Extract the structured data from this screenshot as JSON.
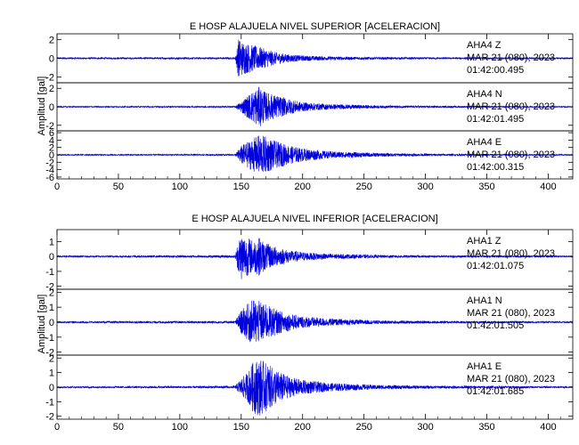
{
  "chart_data": [
    {
      "type": "line",
      "title": "E HOSP ALAJUELA NIVEL SUPERIOR [ACELERACION]",
      "ylabel": "Amplitud [gal]",
      "xlim": [
        0,
        420
      ],
      "x_ticks": [
        "0",
        "50",
        "100",
        "150",
        "200",
        "250",
        "300",
        "350",
        "400"
      ],
      "grid": false,
      "panels": [
        {
          "channel": "AHA4   Z",
          "date": "MAR 21 (080), 2023",
          "time": "01:42:00.495",
          "y_ticks": [
            "2",
            "0",
            "-2"
          ],
          "ylim": [
            -2.6,
            2.6
          ],
          "series": [
            {
              "x": [
                0,
                145,
                148,
                150,
                155,
                160,
                170,
                180,
                190,
                200,
                220,
                260,
                300,
                420
              ],
              "y": [
                0.08,
                0.1,
                2.2,
                1.9,
                1.6,
                1.4,
                1.0,
                0.6,
                0.4,
                0.3,
                0.2,
                0.12,
                0.1,
                0.08
              ]
            }
          ]
        },
        {
          "channel": "AHA4   N",
          "date": "MAR 21 (080), 2023",
          "time": "01:42:01.495",
          "y_ticks": [
            "2",
            "0",
            "-2"
          ],
          "ylim": [
            -2.6,
            2.6
          ],
          "series": [
            {
              "x": [
                0,
                145,
                150,
                155,
                160,
                165,
                170,
                180,
                190,
                200,
                220,
                260,
                300,
                420
              ],
              "y": [
                0.06,
                0.08,
                0.6,
                1.2,
                1.8,
                2.2,
                1.6,
                1.2,
                0.8,
                0.5,
                0.3,
                0.15,
                0.1,
                0.06
              ]
            }
          ]
        },
        {
          "channel": "AHA4   E",
          "date": "MAR 21 (080), 2023",
          "time": "01:42:00.315",
          "y_ticks": [
            "6",
            "4",
            "2",
            "0",
            "-2",
            "-4",
            "-6"
          ],
          "ylim": [
            -6.5,
            6.5
          ],
          "series": [
            {
              "x": [
                0,
                145,
                150,
                155,
                160,
                165,
                170,
                175,
                180,
                190,
                200,
                220,
                260,
                300,
                420
              ],
              "y": [
                0.15,
                0.2,
                2.5,
                3.5,
                4.5,
                5.5,
                5.0,
                4.2,
                3.5,
                2.5,
                1.8,
                1.0,
                0.5,
                0.3,
                0.15
              ]
            }
          ]
        }
      ]
    },
    {
      "type": "line",
      "title": "E HOSP ALAJUELA NIVEL INFERIOR [ACELERACION]",
      "ylabel": "Amplitud [gal]",
      "xlim": [
        0,
        420
      ],
      "x_ticks": [
        "0",
        "50",
        "100",
        "150",
        "200",
        "250",
        "300",
        "350",
        "400"
      ],
      "grid": false,
      "panels": [
        {
          "channel": "AHA1   Z",
          "date": "MAR 21 (080), 2023",
          "time": "01:42:01.075",
          "y_ticks": [
            "1",
            "0",
            "-1",
            "-2"
          ],
          "ylim": [
            -2.2,
            1.8
          ],
          "series": [
            {
              "x": [
                0,
                145,
                148,
                150,
                155,
                160,
                165,
                170,
                180,
                190,
                200,
                220,
                260,
                300,
                420
              ],
              "y": [
                0.05,
                0.08,
                1.2,
                1.6,
                1.3,
                1.1,
                1.3,
                0.9,
                0.6,
                0.4,
                0.3,
                0.18,
                0.1,
                0.07,
                0.05
              ]
            }
          ]
        },
        {
          "channel": "AHA1   N",
          "date": "MAR 21 (080), 2023",
          "time": "01:42:01.505",
          "y_ticks": [
            "2",
            "1",
            "0",
            "-1",
            "-2"
          ],
          "ylim": [
            -2.2,
            2.2
          ],
          "series": [
            {
              "x": [
                0,
                145,
                150,
                155,
                160,
                165,
                170,
                180,
                190,
                200,
                220,
                260,
                300,
                420
              ],
              "y": [
                0.05,
                0.08,
                0.8,
                1.2,
                1.6,
                1.4,
                1.2,
                0.8,
                0.55,
                0.4,
                0.25,
                0.12,
                0.08,
                0.05
              ]
            }
          ]
        },
        {
          "channel": "AHA1   E",
          "date": "MAR 21 (080), 2023",
          "time": "01:42:01.685",
          "y_ticks": [
            "2",
            "1",
            "0",
            "-1",
            "-2"
          ],
          "ylim": [
            -2.2,
            2.2
          ],
          "series": [
            {
              "x": [
                0,
                145,
                150,
                155,
                160,
                165,
                170,
                175,
                180,
                190,
                200,
                220,
                260,
                300,
                420
              ],
              "y": [
                0.05,
                0.08,
                0.6,
                1.0,
                1.8,
                2.0,
                1.7,
                1.4,
                1.1,
                0.7,
                0.5,
                0.3,
                0.15,
                0.1,
                0.05
              ]
            }
          ]
        }
      ]
    }
  ],
  "colors": {
    "trace": "#0000dd",
    "axis": "#000000",
    "background": "#ffffff"
  }
}
